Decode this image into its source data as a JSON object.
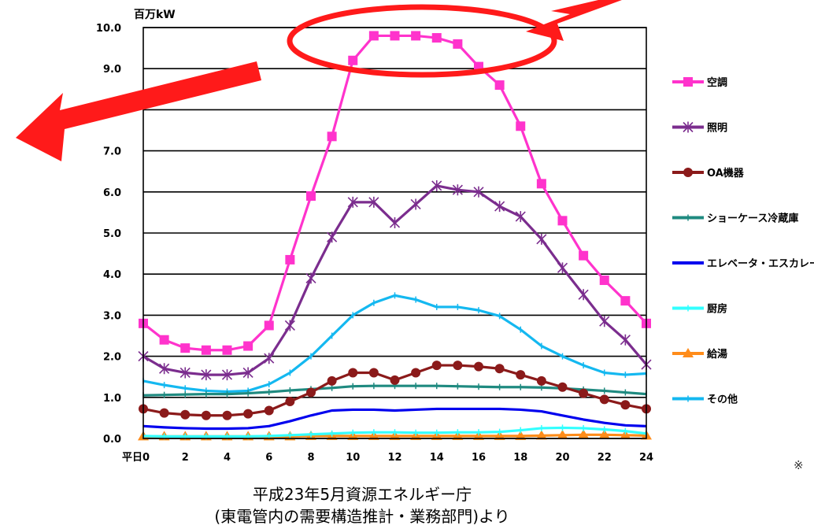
{
  "chart_data": {
    "type": "line",
    "ylabel": "百万kW",
    "ylim": [
      0,
      10
    ],
    "yticks": [
      "0.0",
      "1.0",
      "2.0",
      "3.0",
      "4.0",
      "5.0",
      "6.0",
      "7.0",
      "8.0",
      "9.0",
      "10.0"
    ],
    "xlim": [
      0,
      24
    ],
    "xticks": [
      "平日0",
      "2",
      "4",
      "6",
      "8",
      "10",
      "12",
      "14",
      "16",
      "18",
      "20",
      "22",
      "24"
    ],
    "grid": "horizontal",
    "legend_placement": "right",
    "x": [
      0,
      1,
      2,
      3,
      4,
      5,
      6,
      7,
      8,
      9,
      10,
      11,
      12,
      13,
      14,
      15,
      16,
      17,
      18,
      19,
      20,
      21,
      22,
      23,
      24
    ],
    "series": [
      {
        "name": "空調",
        "color": "#ff33cc",
        "marker": "square",
        "values": [
          2.8,
          2.4,
          2.2,
          2.15,
          2.15,
          2.25,
          2.75,
          4.35,
          5.9,
          7.35,
          9.2,
          9.8,
          9.8,
          9.8,
          9.75,
          9.6,
          9.05,
          8.6,
          7.6,
          6.2,
          5.3,
          4.45,
          3.85,
          3.35,
          2.8
        ]
      },
      {
        "name": "照明",
        "color": "#7b2d8e",
        "marker": "star",
        "values": [
          2.0,
          1.7,
          1.6,
          1.55,
          1.55,
          1.6,
          1.95,
          2.75,
          3.9,
          4.9,
          5.75,
          5.75,
          5.25,
          5.7,
          6.15,
          6.05,
          6.0,
          5.65,
          5.4,
          4.85,
          4.15,
          3.5,
          2.85,
          2.4,
          1.8
        ]
      },
      {
        "name": "OA機器",
        "color": "#8b1a1a",
        "marker": "circle",
        "values": [
          0.72,
          0.62,
          0.58,
          0.56,
          0.56,
          0.6,
          0.68,
          0.9,
          1.12,
          1.4,
          1.6,
          1.6,
          1.42,
          1.6,
          1.78,
          1.78,
          1.75,
          1.7,
          1.55,
          1.4,
          1.25,
          1.1,
          0.95,
          0.82,
          0.72
        ]
      },
      {
        "name": "ショーケース冷蔵庫",
        "color": "#1f8a80",
        "marker": "dash",
        "values": [
          1.05,
          1.06,
          1.07,
          1.08,
          1.08,
          1.1,
          1.13,
          1.17,
          1.2,
          1.23,
          1.27,
          1.28,
          1.28,
          1.28,
          1.28,
          1.27,
          1.26,
          1.25,
          1.25,
          1.24,
          1.22,
          1.19,
          1.16,
          1.12,
          1.08
        ]
      },
      {
        "name": "エレベータ・エスカレータ",
        "color": "#0000ee",
        "marker": "none",
        "values": [
          0.3,
          0.27,
          0.25,
          0.24,
          0.24,
          0.25,
          0.3,
          0.42,
          0.56,
          0.68,
          0.7,
          0.7,
          0.68,
          0.7,
          0.72,
          0.72,
          0.72,
          0.72,
          0.7,
          0.66,
          0.56,
          0.46,
          0.38,
          0.32,
          0.3
        ]
      },
      {
        "name": "厨房",
        "color": "#33ffff",
        "marker": "dash",
        "values": [
          0.06,
          0.05,
          0.05,
          0.05,
          0.05,
          0.05,
          0.06,
          0.08,
          0.1,
          0.12,
          0.14,
          0.15,
          0.15,
          0.14,
          0.14,
          0.15,
          0.15,
          0.16,
          0.2,
          0.25,
          0.26,
          0.25,
          0.22,
          0.18,
          0.12
        ]
      },
      {
        "name": "給湯",
        "color": "#ff8c1a",
        "marker": "triangle",
        "values": [
          0.05,
          0.05,
          0.05,
          0.05,
          0.05,
          0.05,
          0.05,
          0.05,
          0.06,
          0.06,
          0.06,
          0.06,
          0.06,
          0.06,
          0.06,
          0.06,
          0.06,
          0.06,
          0.06,
          0.07,
          0.08,
          0.09,
          0.09,
          0.08,
          0.07
        ]
      },
      {
        "name": "その他",
        "color": "#14b8f0",
        "marker": "dash",
        "values": [
          1.4,
          1.3,
          1.22,
          1.16,
          1.14,
          1.16,
          1.32,
          1.6,
          2.0,
          2.5,
          3.0,
          3.3,
          3.48,
          3.38,
          3.2,
          3.2,
          3.12,
          2.98,
          2.65,
          2.25,
          2.0,
          1.78,
          1.6,
          1.55,
          1.58
        ]
      }
    ]
  },
  "caption_line1": "平成23年5月資源エネルギー庁",
  "caption_line2": "(東電管内の需要構造推計・業務部門)より",
  "footnote": "※"
}
